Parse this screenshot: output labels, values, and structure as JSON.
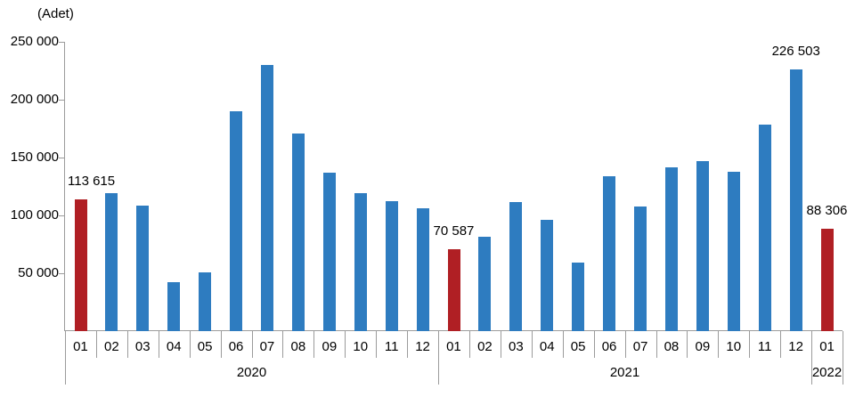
{
  "chart_data": {
    "type": "bar",
    "title": "",
    "ylabel": "(Adet)",
    "xlabel": "",
    "ylim": [
      0,
      250000
    ],
    "ytick_step": 50000,
    "ytick_labels": [
      "50 000",
      "100 000",
      "150 000",
      "200 000",
      "250 000"
    ],
    "grid": false,
    "legend_position": "none",
    "year_groups": [
      {
        "label": "2020",
        "count": 12
      },
      {
        "label": "2021",
        "count": 12
      },
      {
        "label": "2022",
        "count": 1
      }
    ],
    "bars": [
      {
        "year": "2020",
        "month": "01",
        "value": 113615,
        "highlight": true,
        "label": "113 615"
      },
      {
        "year": "2020",
        "month": "02",
        "value": 119500,
        "highlight": false,
        "label": null
      },
      {
        "year": "2020",
        "month": "03",
        "value": 108500,
        "highlight": false,
        "label": null
      },
      {
        "year": "2020",
        "month": "04",
        "value": 42500,
        "highlight": false,
        "label": null
      },
      {
        "year": "2020",
        "month": "05",
        "value": 51000,
        "highlight": false,
        "label": null
      },
      {
        "year": "2020",
        "month": "06",
        "value": 190000,
        "highlight": false,
        "label": null
      },
      {
        "year": "2020",
        "month": "07",
        "value": 230000,
        "highlight": false,
        "label": null
      },
      {
        "year": "2020",
        "month": "08",
        "value": 171000,
        "highlight": false,
        "label": null
      },
      {
        "year": "2020",
        "month": "09",
        "value": 137000,
        "highlight": false,
        "label": null
      },
      {
        "year": "2020",
        "month": "10",
        "value": 119500,
        "highlight": false,
        "label": null
      },
      {
        "year": "2020",
        "month": "11",
        "value": 112000,
        "highlight": false,
        "label": null
      },
      {
        "year": "2020",
        "month": "12",
        "value": 106000,
        "highlight": false,
        "label": null
      },
      {
        "year": "2021",
        "month": "01",
        "value": 70587,
        "highlight": true,
        "label": "70 587"
      },
      {
        "year": "2021",
        "month": "02",
        "value": 81500,
        "highlight": false,
        "label": null
      },
      {
        "year": "2021",
        "month": "03",
        "value": 111500,
        "highlight": false,
        "label": null
      },
      {
        "year": "2021",
        "month": "04",
        "value": 96000,
        "highlight": false,
        "label": null
      },
      {
        "year": "2021",
        "month": "05",
        "value": 59000,
        "highlight": false,
        "label": null
      },
      {
        "year": "2021",
        "month": "06",
        "value": 134000,
        "highlight": false,
        "label": null
      },
      {
        "year": "2021",
        "month": "07",
        "value": 108000,
        "highlight": false,
        "label": null
      },
      {
        "year": "2021",
        "month": "08",
        "value": 141500,
        "highlight": false,
        "label": null
      },
      {
        "year": "2021",
        "month": "09",
        "value": 147000,
        "highlight": false,
        "label": null
      },
      {
        "year": "2021",
        "month": "10",
        "value": 138000,
        "highlight": false,
        "label": null
      },
      {
        "year": "2021",
        "month": "11",
        "value": 178500,
        "highlight": false,
        "label": null
      },
      {
        "year": "2021",
        "month": "12",
        "value": 226503,
        "highlight": false,
        "label": "226 503"
      },
      {
        "year": "2022",
        "month": "01",
        "value": 88306,
        "highlight": true,
        "label": "88 306"
      }
    ],
    "colors": {
      "bar": "#2E7CC0",
      "highlight_bar": "#B01F24",
      "axis": "#9B9B9B",
      "text": "#000000"
    }
  }
}
